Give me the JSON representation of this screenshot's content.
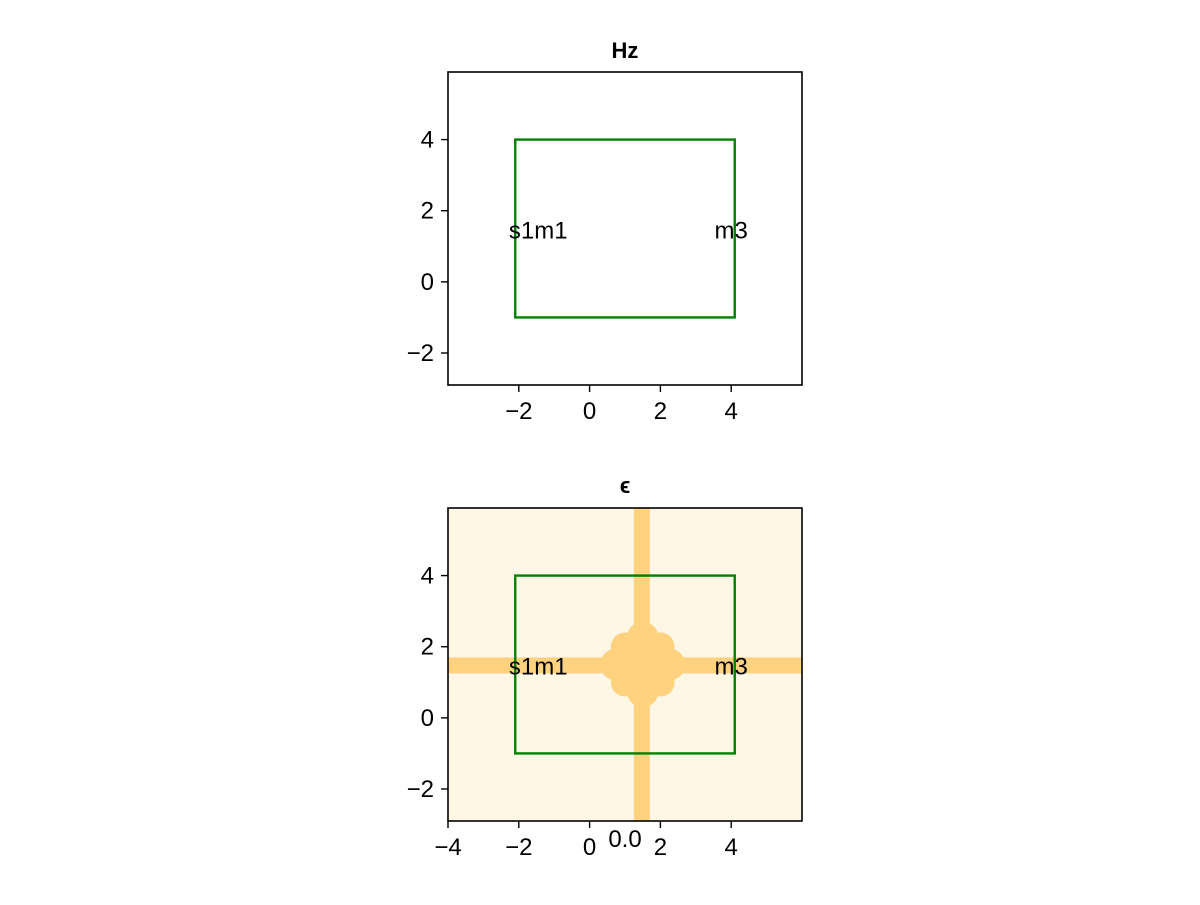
{
  "colors": {
    "domain_box": "#008000",
    "epsilon_background": "#fff7e6",
    "epsilon_core": "#ffd27f",
    "axis": "#000000"
  },
  "chart_data": [
    {
      "type": "heatmap",
      "title": "Hz",
      "xlim": [
        -4,
        6
      ],
      "ylim": [
        -2.9,
        5.9
      ],
      "xticks": [
        -2,
        0,
        2,
        4
      ],
      "xtick_labels": [
        "−2",
        "0",
        "2",
        "4"
      ],
      "yticks": [
        -2,
        0,
        2,
        4
      ],
      "ytick_labels": [
        "−2",
        "0",
        "2",
        "4"
      ],
      "grid": false,
      "domain_box": {
        "x": [
          -2.1,
          4.1
        ],
        "y": [
          -1.0,
          4.0
        ]
      },
      "annotations": [
        {
          "text": "s1m1",
          "x": -1.45,
          "y": 1.45
        },
        {
          "text": "m3",
          "x": 4.0,
          "y": 1.45
        }
      ]
    },
    {
      "type": "heatmap",
      "title": "ϵ",
      "xlim": [
        -4,
        6
      ],
      "ylim": [
        -2.9,
        5.9
      ],
      "xticks": [
        -4,
        -2,
        0,
        2,
        4
      ],
      "xtick_labels": [
        "−4",
        "−2",
        "0",
        "2",
        "4"
      ],
      "yticks": [
        -2,
        0,
        2,
        4
      ],
      "ytick_labels": [
        "−2",
        "0",
        "2",
        "4"
      ],
      "grid": false,
      "domain_box": {
        "x": [
          -2.1,
          4.1
        ],
        "y": [
          -1.0,
          4.0
        ]
      },
      "annotations": [
        {
          "text": "s1m1",
          "x": -1.45,
          "y": 1.45
        },
        {
          "text": "m3",
          "x": 4.0,
          "y": 1.45
        },
        {
          "text": "0.0",
          "x": 1.0,
          "y": -3.4
        }
      ],
      "features": {
        "horizontal_waveguide": {
          "y": [
            1.25,
            1.7
          ],
          "x": [
            -4,
            6
          ]
        },
        "vertical_waveguide": {
          "x": [
            1.25,
            1.7
          ],
          "y": [
            -2.9,
            5.9
          ]
        },
        "center_region": {
          "x": [
            0.35,
            2.65
          ],
          "y": [
            0.35,
            2.65
          ]
        }
      }
    }
  ]
}
